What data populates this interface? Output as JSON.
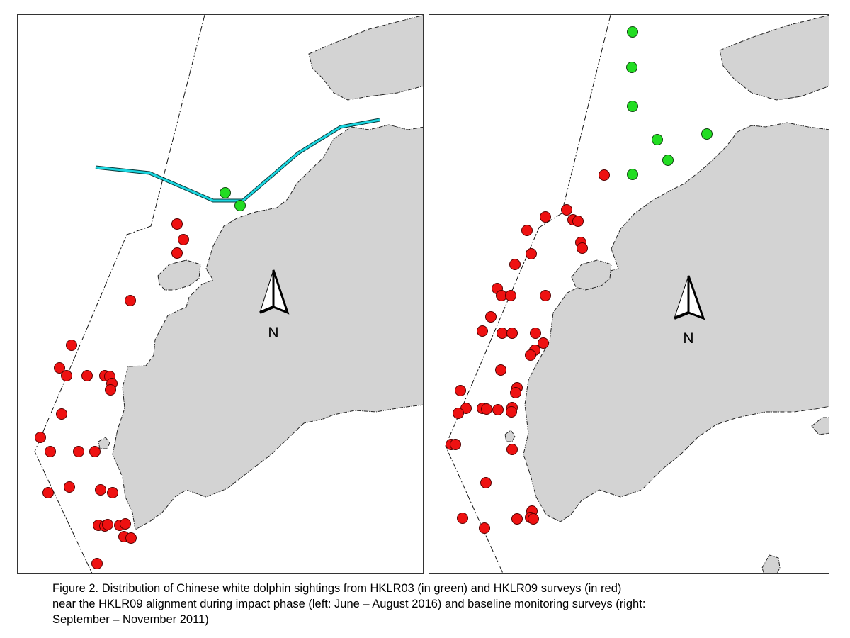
{
  "panels": [
    {
      "id": "left",
      "north_label": "N",
      "sightings": {
        "red": [
          [
            249,
            315
          ],
          [
            258,
            337
          ],
          [
            249,
            356
          ],
          [
            183,
            423
          ],
          [
            100,
            486
          ],
          [
            83,
            518
          ],
          [
            93,
            529
          ],
          [
            122,
            529
          ],
          [
            147,
            529
          ],
          [
            154,
            530
          ],
          [
            157,
            540
          ],
          [
            155,
            549
          ],
          [
            86,
            583
          ],
          [
            56,
            616
          ],
          [
            70,
            636
          ],
          [
            110,
            636
          ],
          [
            133,
            636
          ],
          [
            97,
            686
          ],
          [
            141,
            690
          ],
          [
            158,
            694
          ],
          [
            67,
            694
          ],
          [
            138,
            740
          ],
          [
            147,
            741
          ],
          [
            151,
            739
          ],
          [
            168,
            740
          ],
          [
            176,
            738
          ],
          [
            174,
            756
          ],
          [
            184,
            758
          ],
          [
            136,
            794
          ]
        ],
        "green": [
          [
            317,
            271
          ],
          [
            338,
            289
          ]
        ]
      }
    },
    {
      "id": "right",
      "north_label": "N",
      "sightings": {
        "red": [
          [
            799,
            295
          ],
          [
            808,
            309
          ],
          [
            815,
            311
          ],
          [
            769,
            305
          ],
          [
            743,
            324
          ],
          [
            819,
            341
          ],
          [
            821,
            349
          ],
          [
            749,
            357
          ],
          [
            726,
            372
          ],
          [
            701,
            406
          ],
          [
            707,
            416
          ],
          [
            720,
            416
          ],
          [
            769,
            416
          ],
          [
            692,
            446
          ],
          [
            680,
            466
          ],
          [
            708,
            469
          ],
          [
            722,
            469
          ],
          [
            755,
            469
          ],
          [
            766,
            483
          ],
          [
            754,
            493
          ],
          [
            748,
            500
          ],
          [
            706,
            521
          ],
          [
            729,
            546
          ],
          [
            727,
            553
          ],
          [
            649,
            550
          ],
          [
            657,
            575
          ],
          [
            646,
            582
          ],
          [
            680,
            575
          ],
          [
            686,
            576
          ],
          [
            702,
            577
          ],
          [
            722,
            574
          ],
          [
            721,
            580
          ],
          [
            636,
            626
          ],
          [
            642,
            626
          ],
          [
            722,
            633
          ],
          [
            685,
            680
          ],
          [
            750,
            720
          ],
          [
            748,
            729
          ],
          [
            752,
            731
          ],
          [
            652,
            730
          ],
          [
            729,
            731
          ],
          [
            683,
            744
          ],
          [
            852,
            246
          ]
        ],
        "green": [
          [
            892,
            44
          ],
          [
            891,
            94
          ],
          [
            892,
            149
          ],
          [
            927,
            196
          ],
          [
            997,
            188
          ],
          [
            942,
            225
          ],
          [
            892,
            245
          ]
        ]
      }
    }
  ],
  "caption": {
    "line1": "Figure 2.  Distribution of Chinese white dolphin sightings from HKLR03 (in green) and HKLR09 surveys (in red)",
    "line2": "near the HKLR09 alignment during impact phase (left: June – August 2016) and baseline monitoring surveys (right:",
    "line3": "September – November 2011)"
  }
}
